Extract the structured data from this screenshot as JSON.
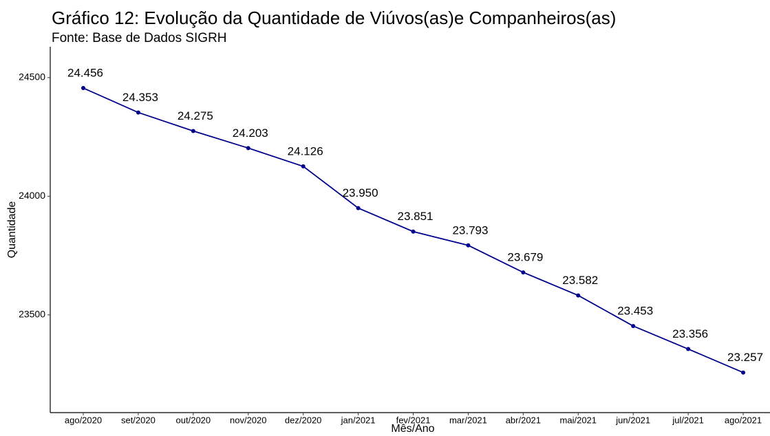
{
  "chart_data": {
    "type": "line",
    "title": "Gráfico 12: Evolução da Quantidade de Viúvos(as)e Companheiros(as)",
    "subtitle": "Fonte: Base de Dados SIGRH",
    "x_label": "Mês/Ano",
    "y_label": "Quantidade",
    "categories": [
      "ago/2020",
      "set/2020",
      "out/2020",
      "nov/2020",
      "dez/2020",
      "jan/2021",
      "fev/2021",
      "mar/2021",
      "abr/2021",
      "mai/2021",
      "jun/2021",
      "jul/2021",
      "ago/2021"
    ],
    "series": [
      {
        "name": "Quantidade",
        "color": "#00008b",
        "values": [
          24456,
          24353,
          24275,
          24203,
          24126,
          23950,
          23851,
          23793,
          23679,
          23582,
          23453,
          23356,
          23257
        ],
        "value_labels": [
          "24.456",
          "24.353",
          "24.275",
          "24.203",
          "24.126",
          "23.950",
          "23.851",
          "23.793",
          "23.679",
          "23.582",
          "23.453",
          "23.356",
          "23.257"
        ]
      }
    ],
    "ylim": [
      23088,
      24630
    ],
    "yticks": [
      23500,
      24000,
      24500
    ],
    "grid": false
  }
}
